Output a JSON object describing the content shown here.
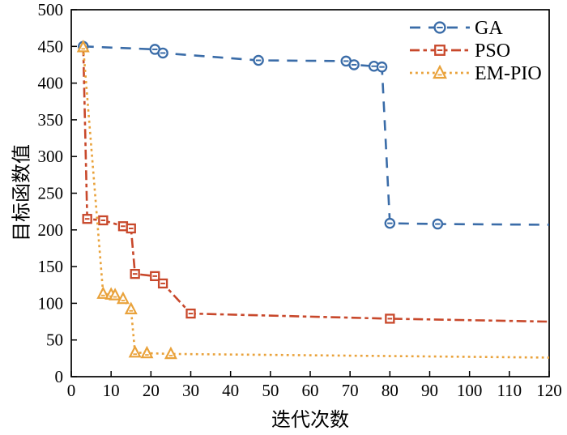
{
  "chart_data": {
    "type": "line",
    "title": "",
    "xlabel": "迭代次数",
    "ylabel": "目标函数值",
    "xlim": [
      0,
      120
    ],
    "ylim": [
      0,
      500
    ],
    "xticks": [
      0,
      10,
      20,
      30,
      40,
      50,
      60,
      70,
      80,
      90,
      100,
      110,
      120
    ],
    "yticks": [
      0,
      50,
      100,
      150,
      200,
      250,
      300,
      350,
      400,
      450,
      500
    ],
    "grid": false,
    "legend_position": "top-right",
    "axis_color": "#000000",
    "series": [
      {
        "name": "GA",
        "color": "#3a6ca8",
        "line_style": "dashed",
        "marker": "circle-minus",
        "points": [
          [
            3,
            450
          ],
          [
            21,
            446
          ],
          [
            23,
            441
          ],
          [
            47,
            431
          ],
          [
            69,
            430
          ],
          [
            71,
            425
          ],
          [
            76,
            423
          ],
          [
            78,
            422
          ],
          [
            80,
            209
          ],
          [
            92,
            208
          ],
          [
            120,
            207
          ]
        ],
        "markers_at": [
          [
            3,
            450
          ],
          [
            21,
            446
          ],
          [
            23,
            441
          ],
          [
            47,
            431
          ],
          [
            69,
            430
          ],
          [
            71,
            425
          ],
          [
            76,
            423
          ],
          [
            78,
            422
          ],
          [
            80,
            209
          ],
          [
            92,
            208
          ]
        ]
      },
      {
        "name": "PSO",
        "color": "#c8482b",
        "line_style": "dash-dot",
        "marker": "square-minus",
        "points": [
          [
            3,
            450
          ],
          [
            4,
            215
          ],
          [
            8,
            213
          ],
          [
            13,
            205
          ],
          [
            15,
            202
          ],
          [
            16,
            140
          ],
          [
            21,
            137
          ],
          [
            23,
            127
          ],
          [
            30,
            86
          ],
          [
            80,
            79
          ],
          [
            120,
            75
          ]
        ],
        "markers_at": [
          [
            4,
            215
          ],
          [
            8,
            213
          ],
          [
            13,
            205
          ],
          [
            15,
            202
          ],
          [
            16,
            140
          ],
          [
            21,
            137
          ],
          [
            23,
            127
          ],
          [
            30,
            86
          ],
          [
            80,
            79
          ]
        ]
      },
      {
        "name": "EM-PIO",
        "color": "#e9a23b",
        "line_style": "dotted",
        "marker": "triangle-delta",
        "points": [
          [
            3,
            449
          ],
          [
            8,
            113
          ],
          [
            10,
            112
          ],
          [
            11,
            111
          ],
          [
            13,
            106
          ],
          [
            15,
            92
          ],
          [
            16,
            33
          ],
          [
            19,
            32
          ],
          [
            25,
            31
          ],
          [
            120,
            26
          ]
        ],
        "markers_at": [
          [
            3,
            449
          ],
          [
            8,
            113
          ],
          [
            10,
            112
          ],
          [
            11,
            111
          ],
          [
            13,
            106
          ],
          [
            15,
            92
          ],
          [
            16,
            33
          ],
          [
            19,
            32
          ],
          [
            25,
            31
          ]
        ]
      }
    ]
  }
}
